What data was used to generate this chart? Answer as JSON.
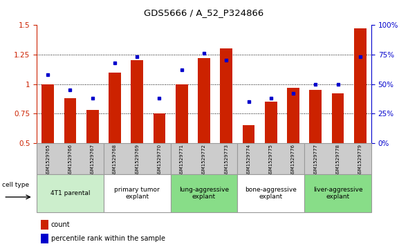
{
  "title": "GDS5666 / A_52_P324866",
  "samples": [
    "GSM1529765",
    "GSM1529766",
    "GSM1529767",
    "GSM1529768",
    "GSM1529769",
    "GSM1529770",
    "GSM1529771",
    "GSM1529772",
    "GSM1529773",
    "GSM1529774",
    "GSM1529775",
    "GSM1529776",
    "GSM1529777",
    "GSM1529778",
    "GSM1529779"
  ],
  "count_values": [
    1.0,
    0.88,
    0.78,
    1.1,
    1.2,
    0.75,
    1.0,
    1.22,
    1.3,
    0.65,
    0.85,
    0.97,
    0.95,
    0.92,
    1.47
  ],
  "percentile_values": [
    0.58,
    0.45,
    0.38,
    0.68,
    0.73,
    0.38,
    0.62,
    0.76,
    0.7,
    0.35,
    0.38,
    0.42,
    0.5,
    0.5,
    0.73
  ],
  "ylim": [
    0.5,
    1.5
  ],
  "yticks": [
    0.5,
    0.75,
    1.0,
    1.25,
    1.5
  ],
  "ytick_labels": [
    "0.5",
    "0.75",
    "1",
    "1.25",
    "1.5"
  ],
  "right_ytick_labels": [
    "0%",
    "25%",
    "50%",
    "75%",
    "100%"
  ],
  "groups": [
    {
      "label": "4T1 parental",
      "indices": [
        0,
        1,
        2
      ],
      "color": "#cceecc"
    },
    {
      "label": "primary tumor\nexplant",
      "indices": [
        3,
        4,
        5
      ],
      "color": "#ffffff"
    },
    {
      "label": "lung-aggressive\nexplant",
      "indices": [
        6,
        7,
        8
      ],
      "color": "#88dd88"
    },
    {
      "label": "bone-aggressive\nexplant",
      "indices": [
        9,
        10,
        11
      ],
      "color": "#ffffff"
    },
    {
      "label": "liver-aggressive\nexplant",
      "indices": [
        12,
        13,
        14
      ],
      "color": "#88dd88"
    }
  ],
  "bar_color": "#cc2200",
  "dot_color": "#0000cc",
  "cell_type_label": "cell type",
  "legend_count_label": "count",
  "legend_percentile_label": "percentile rank within the sample",
  "bg_color": "#ffffff",
  "group_border_color": "#999999",
  "xtick_bg": "#cccccc"
}
